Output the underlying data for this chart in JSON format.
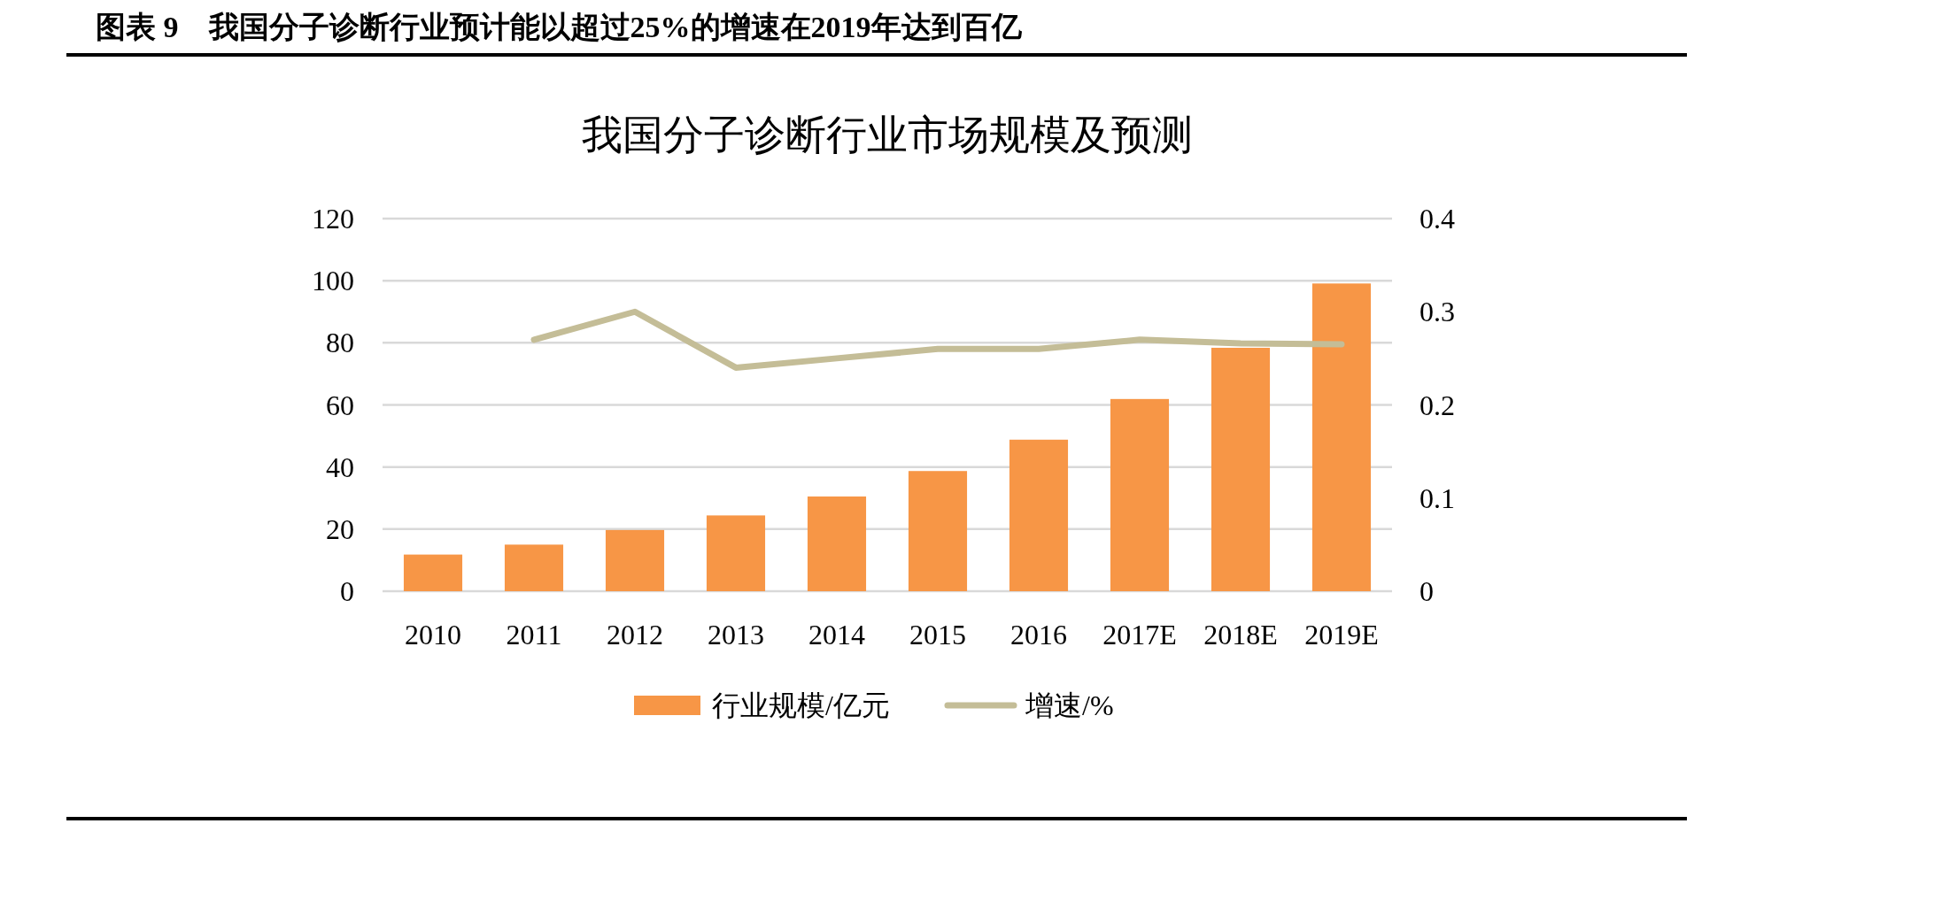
{
  "chart_data": {
    "type": "bar",
    "title": "图表 9　我国分子诊断行业预计能以超过25%的增速在2019年达到百亿",
    "subtitle": "我国分子诊断行业市场规模及预测",
    "categories": [
      "2010",
      "2011",
      "2012",
      "2013",
      "2014",
      "2015",
      "2016",
      "2017E",
      "2018E",
      "2019E"
    ],
    "series": [
      {
        "name": "行业规模/亿元",
        "color": "#f79646",
        "values": [
          11.8,
          15.0,
          19.7,
          24.4,
          30.5,
          38.7,
          48.8,
          61.9,
          78.4,
          99.1
        ]
      },
      {
        "name": "增速/%",
        "type": "line",
        "axis": "y2",
        "color": "#c4bd97",
        "values": [
          null,
          0.27,
          0.3,
          0.24,
          0.25,
          0.26,
          0.26,
          0.27,
          0.266,
          0.265
        ]
      }
    ],
    "ylim": [
      0,
      120
    ],
    "yticks": [
      0,
      20,
      40,
      60,
      80,
      100,
      120
    ],
    "y2lim": [
      0,
      0.4
    ],
    "y2ticks": [
      0,
      0.1,
      0.2,
      0.3,
      0.4
    ],
    "grid": "y",
    "legend": "bottom"
  }
}
